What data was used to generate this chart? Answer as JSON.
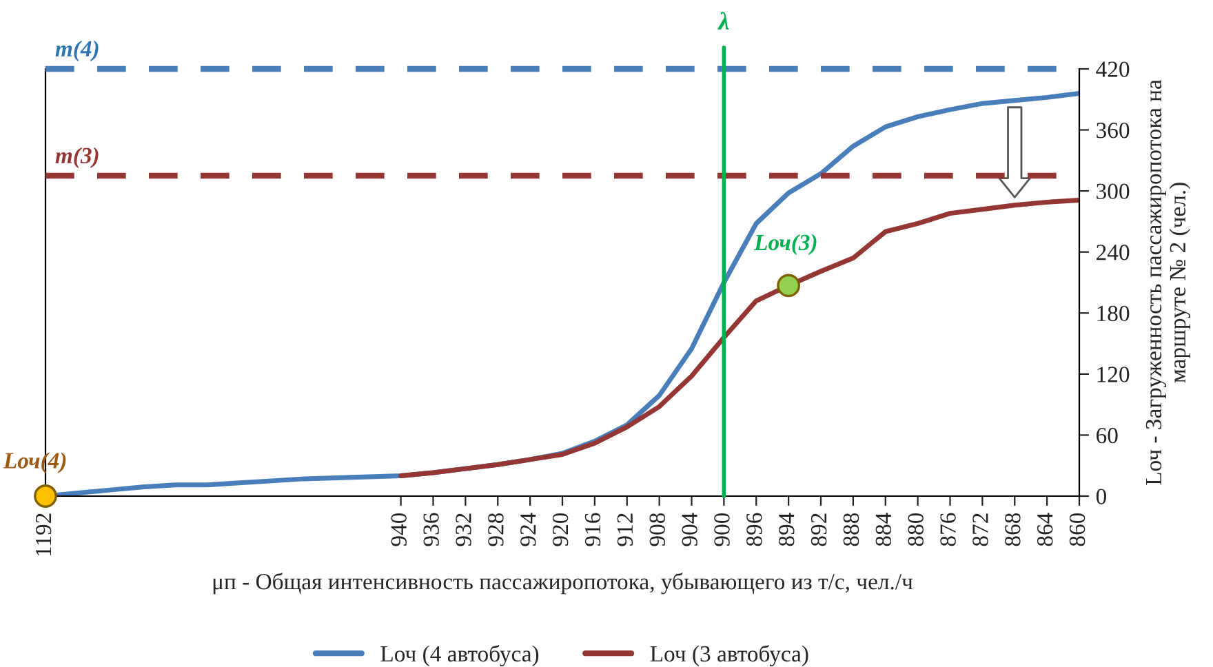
{
  "chart_data": {
    "type": "line",
    "xlabel": "μп - Общая интенсивность пассажиропотока, убывающего из т/с, чел./ч",
    "ylabel": "Lоч - Загруженность пассажиропотока на\nмаршруте № 2 (чел.)",
    "categories": [
      "1192",
      null,
      null,
      null,
      null,
      null,
      null,
      null,
      null,
      null,
      null,
      "940",
      "936",
      "932",
      "928",
      "924",
      "920",
      "916",
      "912",
      "908",
      "904",
      "900",
      "896",
      "894",
      "892",
      "888",
      "884",
      "880",
      "876",
      "872",
      "868",
      "864",
      "860"
    ],
    "series": [
      {
        "name": "Lоч (4 автобуса)",
        "color": "#4a7ebb",
        "values": [
          0,
          3,
          6,
          9,
          11,
          11,
          13,
          15,
          17,
          18,
          19,
          20,
          23,
          27,
          31,
          36,
          42,
          54,
          70,
          99,
          145,
          210,
          268,
          298,
          317,
          344,
          363,
          373,
          380,
          386,
          389,
          392,
          396
        ]
      },
      {
        "name": "Lоч (3 автобуса)",
        "color": "#943634",
        "values": [
          null,
          null,
          null,
          null,
          null,
          null,
          null,
          null,
          null,
          null,
          null,
          20,
          23,
          27,
          31,
          36,
          41,
          52,
          68,
          88,
          118,
          156,
          192,
          207,
          221,
          234,
          260,
          268,
          278,
          282,
          286,
          289,
          291
        ]
      },
      {
        "type": "scatter",
        "marker": "circle",
        "color": "#ffc000",
        "values": [
          0,
          null,
          null,
          null,
          null,
          null,
          null,
          null,
          null,
          null,
          null,
          null,
          null,
          null,
          null,
          null,
          null,
          null,
          null,
          null,
          null,
          null,
          null,
          null,
          null,
          null,
          null,
          null,
          null,
          null,
          null,
          null,
          null
        ]
      },
      {
        "type": "scatter",
        "marker": "circle",
        "color": "#92d050",
        "values": [
          null,
          null,
          null,
          null,
          null,
          null,
          null,
          null,
          null,
          null,
          null,
          null,
          null,
          null,
          null,
          null,
          null,
          null,
          null,
          null,
          null,
          null,
          null,
          207,
          null,
          null,
          null,
          null,
          null,
          null,
          null,
          null,
          null
        ]
      }
    ],
    "ylim": [
      0,
      420
    ],
    "yticks": [
      0,
      60,
      120,
      180,
      240,
      300,
      360,
      420
    ],
    "ref_lines": [
      {
        "axis": "y",
        "value": 420,
        "color": "#4a7ebb",
        "line_style": "dashed"
      },
      {
        "axis": "y",
        "value": 315,
        "color": "#943634",
        "line_style": "dashed"
      },
      {
        "axis": "x",
        "value": "900",
        "label": "λ",
        "color": "#00b050",
        "line_style": "solid"
      }
    ],
    "annotations": [
      {
        "text": "m(4)",
        "x": "1192",
        "y": 420
      },
      {
        "text": "m(3)",
        "x": "1192",
        "y": 315
      },
      {
        "text": "Lоч(4)",
        "x": "1192",
        "y": 0
      },
      {
        "text": "Lоч(3)",
        "x": "894",
        "y": 207
      }
    ],
    "grid": false,
    "legend": "bottom",
    "marker": "none",
    "line_style": "solid"
  }
}
